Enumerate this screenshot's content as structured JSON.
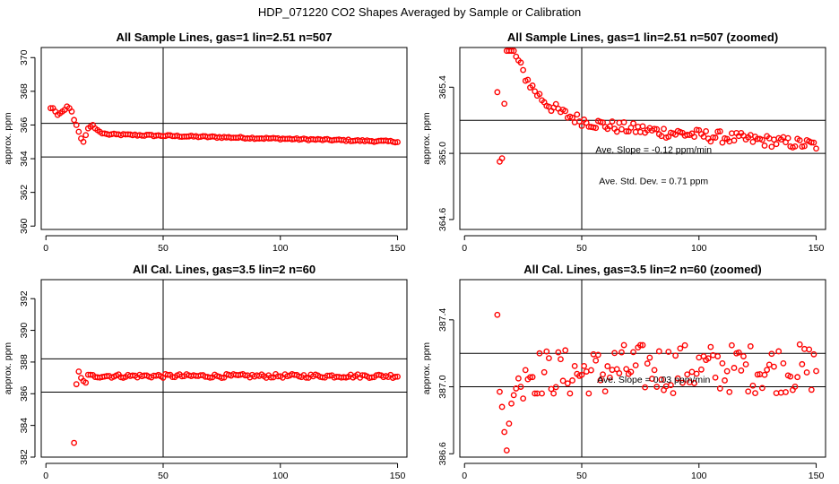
{
  "figure_title": "HDP_071220  CO2 Shapes Averaged by Sample or Calibration",
  "colors": {
    "points": "#ff0000",
    "lines": "#000000"
  },
  "chart_data": [
    {
      "type": "scatter",
      "title": "All Sample Lines, gas=1 lin=2.51 n=507",
      "xlabel": "",
      "ylabel": "approx. ppm",
      "xlim": [
        -2,
        154
      ],
      "ylim": [
        359.8,
        370.6
      ],
      "xticks": [
        0,
        50,
        100,
        150
      ],
      "yticks": [
        360,
        362,
        364,
        366,
        368,
        370
      ],
      "vline": 50,
      "hlines": [
        364.1,
        366.1
      ],
      "annotations": [],
      "series": [
        {
          "gen": "sample_full",
          "x_start": 2,
          "x_step": 1,
          "count": 149,
          "values": [
            367.0,
            367.0,
            366.8,
            366.6,
            366.7,
            366.8,
            366.9,
            367.1,
            367.0,
            366.8,
            366.3,
            366.0,
            365.6,
            365.2,
            365.0,
            365.4,
            365.8,
            365.9,
            366.0,
            365.8,
            365.7,
            365.6,
            365.5,
            365.5
          ]
        }
      ]
    },
    {
      "type": "scatter",
      "title": "All Sample Lines, gas=1 lin=2.51 n=507 (zoomed)",
      "xlabel": "",
      "ylabel": "approx. ppm",
      "xlim": [
        -2,
        154
      ],
      "ylim": [
        364.54,
        365.64
      ],
      "xticks": [
        0,
        50,
        100,
        150
      ],
      "yticks": [
        364.6,
        365.0,
        365.4
      ],
      "vline": 50,
      "hlines": [
        365.0,
        365.2
      ],
      "annotations": [
        "Ave. Slope =  -0.12  ppm/min",
        "Ave. Std. Dev. =  0.71  ppm"
      ],
      "series": [
        {
          "gen": "sample_zoom",
          "x_start": 14,
          "x_step": 1,
          "count": 137,
          "values": [
            365.37,
            364.95,
            364.97,
            365.3
          ]
        }
      ]
    },
    {
      "type": "scatter",
      "title": "All Cal. Lines, gas=3.5 lin=2 n=60",
      "xlabel": "",
      "ylabel": "approx. ppm",
      "xlim": [
        -2,
        154
      ],
      "ylim": [
        382.0,
        393.2
      ],
      "xticks": [
        0,
        50,
        100,
        150
      ],
      "yticks": [
        382,
        384,
        386,
        388,
        390,
        392
      ],
      "vline": 50,
      "hlines": [
        386.1,
        388.2
      ],
      "annotations": [],
      "series": [
        {
          "gen": "cal_full",
          "x_start": 12,
          "x_step": 1,
          "count": 139,
          "values": [
            382.9,
            386.6,
            387.4,
            387.0,
            386.8,
            386.7
          ]
        }
      ]
    },
    {
      "type": "scatter",
      "title": "All Cal. Lines, gas=3.5 lin=2 n=60 (zoomed)",
      "xlabel": "",
      "ylabel": "approx. ppm",
      "xlim": [
        -2,
        154
      ],
      "ylim": [
        386.58,
        387.64
      ],
      "xticks": [
        0,
        50,
        100,
        150
      ],
      "yticks": [
        386.6,
        387.0,
        387.4
      ],
      "vline": 50,
      "hlines": [
        387.0,
        387.2
      ],
      "annotations": [
        "Ave. Slope =  0.03  ppm/min"
      ],
      "series": [
        {
          "gen": "cal_zoom",
          "x_start": 14,
          "x_step": 1,
          "count": 137,
          "values": [
            387.43,
            386.97,
            386.88,
            386.73,
            386.62,
            386.78,
            386.9,
            386.95,
            386.99,
            387.05,
            387.0,
            386.93,
            387.1
          ]
        }
      ]
    }
  ]
}
